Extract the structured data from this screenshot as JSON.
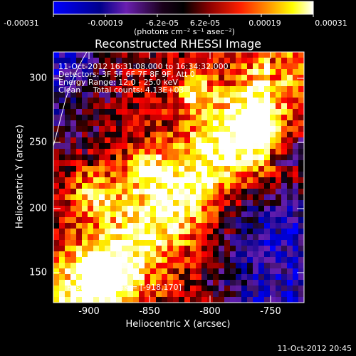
{
  "colorbar": {
    "ticks": [
      "-0.00031",
      "-0.00019",
      "-6.2e-05",
      "6.2e-05",
      "0.00019",
      "0.00031"
    ],
    "units": "(photons cm⁻² s⁻¹ asec⁻²)"
  },
  "title": "Reconstructed RHESSI Image",
  "info": {
    "time": "11-Oct-2012 16:31:08.000 to 16:34:32.000",
    "detectors": "Detectors: 3F 5F 6F 7F 8F 9F, Att 0",
    "energy": "Energy Range: 12.0 - 25.0 keV",
    "clean": "Clean     Total counts: 4.13E+03"
  },
  "position_label": "Position of Peak = [-918,170]",
  "axes": {
    "xlabel": "Heliocentric X (arcsec)",
    "ylabel": "Heliocentric Y (arcsec)",
    "xticks": [
      "-900",
      "-850",
      "-800",
      "-750"
    ],
    "yticks": [
      "300",
      "250",
      "200",
      "150"
    ]
  },
  "footer": "11-Oct-2012 20:45",
  "colors": {
    "colormap": [
      "#0000ff",
      "#00008b",
      "#6a1fb0",
      "#000000",
      "#8b0000",
      "#ff0000",
      "#ff8c00",
      "#ffff00",
      "#ffffff"
    ]
  }
}
